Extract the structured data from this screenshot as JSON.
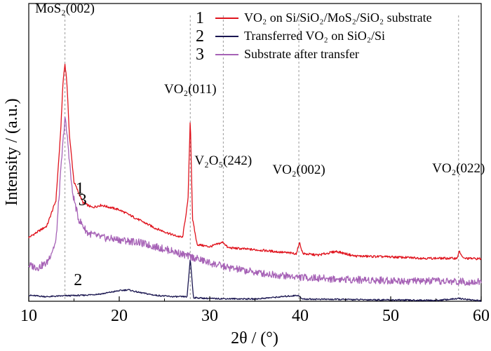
{
  "chart_data": {
    "type": "line",
    "xlabel": "2θ / (°)",
    "ylabel": "Intensity / (a.u.)",
    "xlim": [
      10,
      60
    ],
    "xticks": [
      10,
      20,
      30,
      40,
      50,
      60
    ],
    "y_units": "arbitrary (stacked, no tick labels)",
    "grid": false,
    "legend_position": "top-right",
    "series": [
      {
        "id": "1",
        "curve_label": "1",
        "name": "VO₂ on Si/SiO₂/MoS₂/SiO₂ substrate",
        "color": "#e0141e",
        "x": [
          10,
          12,
          13,
          13.5,
          13.8,
          14.0,
          14.2,
          14.5,
          15.0,
          16,
          17,
          18,
          20,
          22,
          24,
          26,
          27,
          27.6,
          27.85,
          28.1,
          28.6,
          30,
          31.5,
          32,
          34,
          36,
          38,
          39.6,
          39.9,
          40.3,
          42,
          44,
          46,
          50,
          54,
          57.3,
          57.6,
          58,
          60
        ],
        "y": [
          1.0,
          1.25,
          1.8,
          3.2,
          4.4,
          4.75,
          4.4,
          3.2,
          2.2,
          1.75,
          1.65,
          1.7,
          1.6,
          1.4,
          1.2,
          1.05,
          1.0,
          1.8,
          3.6,
          1.4,
          0.85,
          0.8,
          0.9,
          0.78,
          0.75,
          0.72,
          0.68,
          0.65,
          0.9,
          0.65,
          0.62,
          0.7,
          0.6,
          0.58,
          0.55,
          0.55,
          0.7,
          0.55,
          0.54
        ]
      },
      {
        "id": "2",
        "curve_label": "2",
        "name": "Transferred VO₂ on SiO₂/Si",
        "color": "#1a1650",
        "x": [
          10,
          12,
          14,
          16,
          18,
          20,
          21,
          22,
          24,
          26,
          27.5,
          27.85,
          28.2,
          30,
          35,
          39.8,
          40.2,
          45,
          50,
          55,
          57.6,
          60
        ],
        "y": [
          -0.25,
          -0.28,
          -0.26,
          -0.25,
          -0.22,
          -0.15,
          -0.13,
          -0.18,
          -0.25,
          -0.28,
          -0.28,
          0.55,
          -0.3,
          -0.32,
          -0.33,
          -0.25,
          -0.33,
          -0.34,
          -0.35,
          -0.36,
          -0.32,
          -0.37
        ]
      },
      {
        "id": "3",
        "curve_label": "3",
        "name": "Substrate after transfer",
        "color": "#a662b6",
        "x": [
          10,
          11,
          12,
          13,
          13.6,
          14.0,
          14.3,
          14.8,
          15.5,
          16.5,
          18,
          20,
          22,
          24,
          26,
          27.5,
          28,
          30,
          32,
          34,
          36,
          38,
          40,
          44,
          48,
          52,
          56,
          60
        ],
        "y": [
          0.4,
          0.35,
          0.45,
          0.9,
          2.6,
          3.6,
          3.1,
          2.0,
          1.4,
          1.1,
          1.0,
          0.95,
          0.9,
          0.8,
          0.7,
          0.6,
          0.58,
          0.45,
          0.35,
          0.28,
          0.22,
          0.18,
          0.14,
          0.1,
          0.08,
          0.06,
          0.05,
          0.04
        ]
      }
    ],
    "peak_annotations": [
      {
        "label": "MoS₂(002)",
        "x": 14.0
      },
      {
        "label": "VO₂(011)",
        "x": 27.85
      },
      {
        "label": "V₂O₅(242)",
        "x": 31.5
      },
      {
        "label": "VO₂(002)",
        "x": 39.85
      },
      {
        "label": "VO₂(022)",
        "x": 57.5
      }
    ]
  }
}
